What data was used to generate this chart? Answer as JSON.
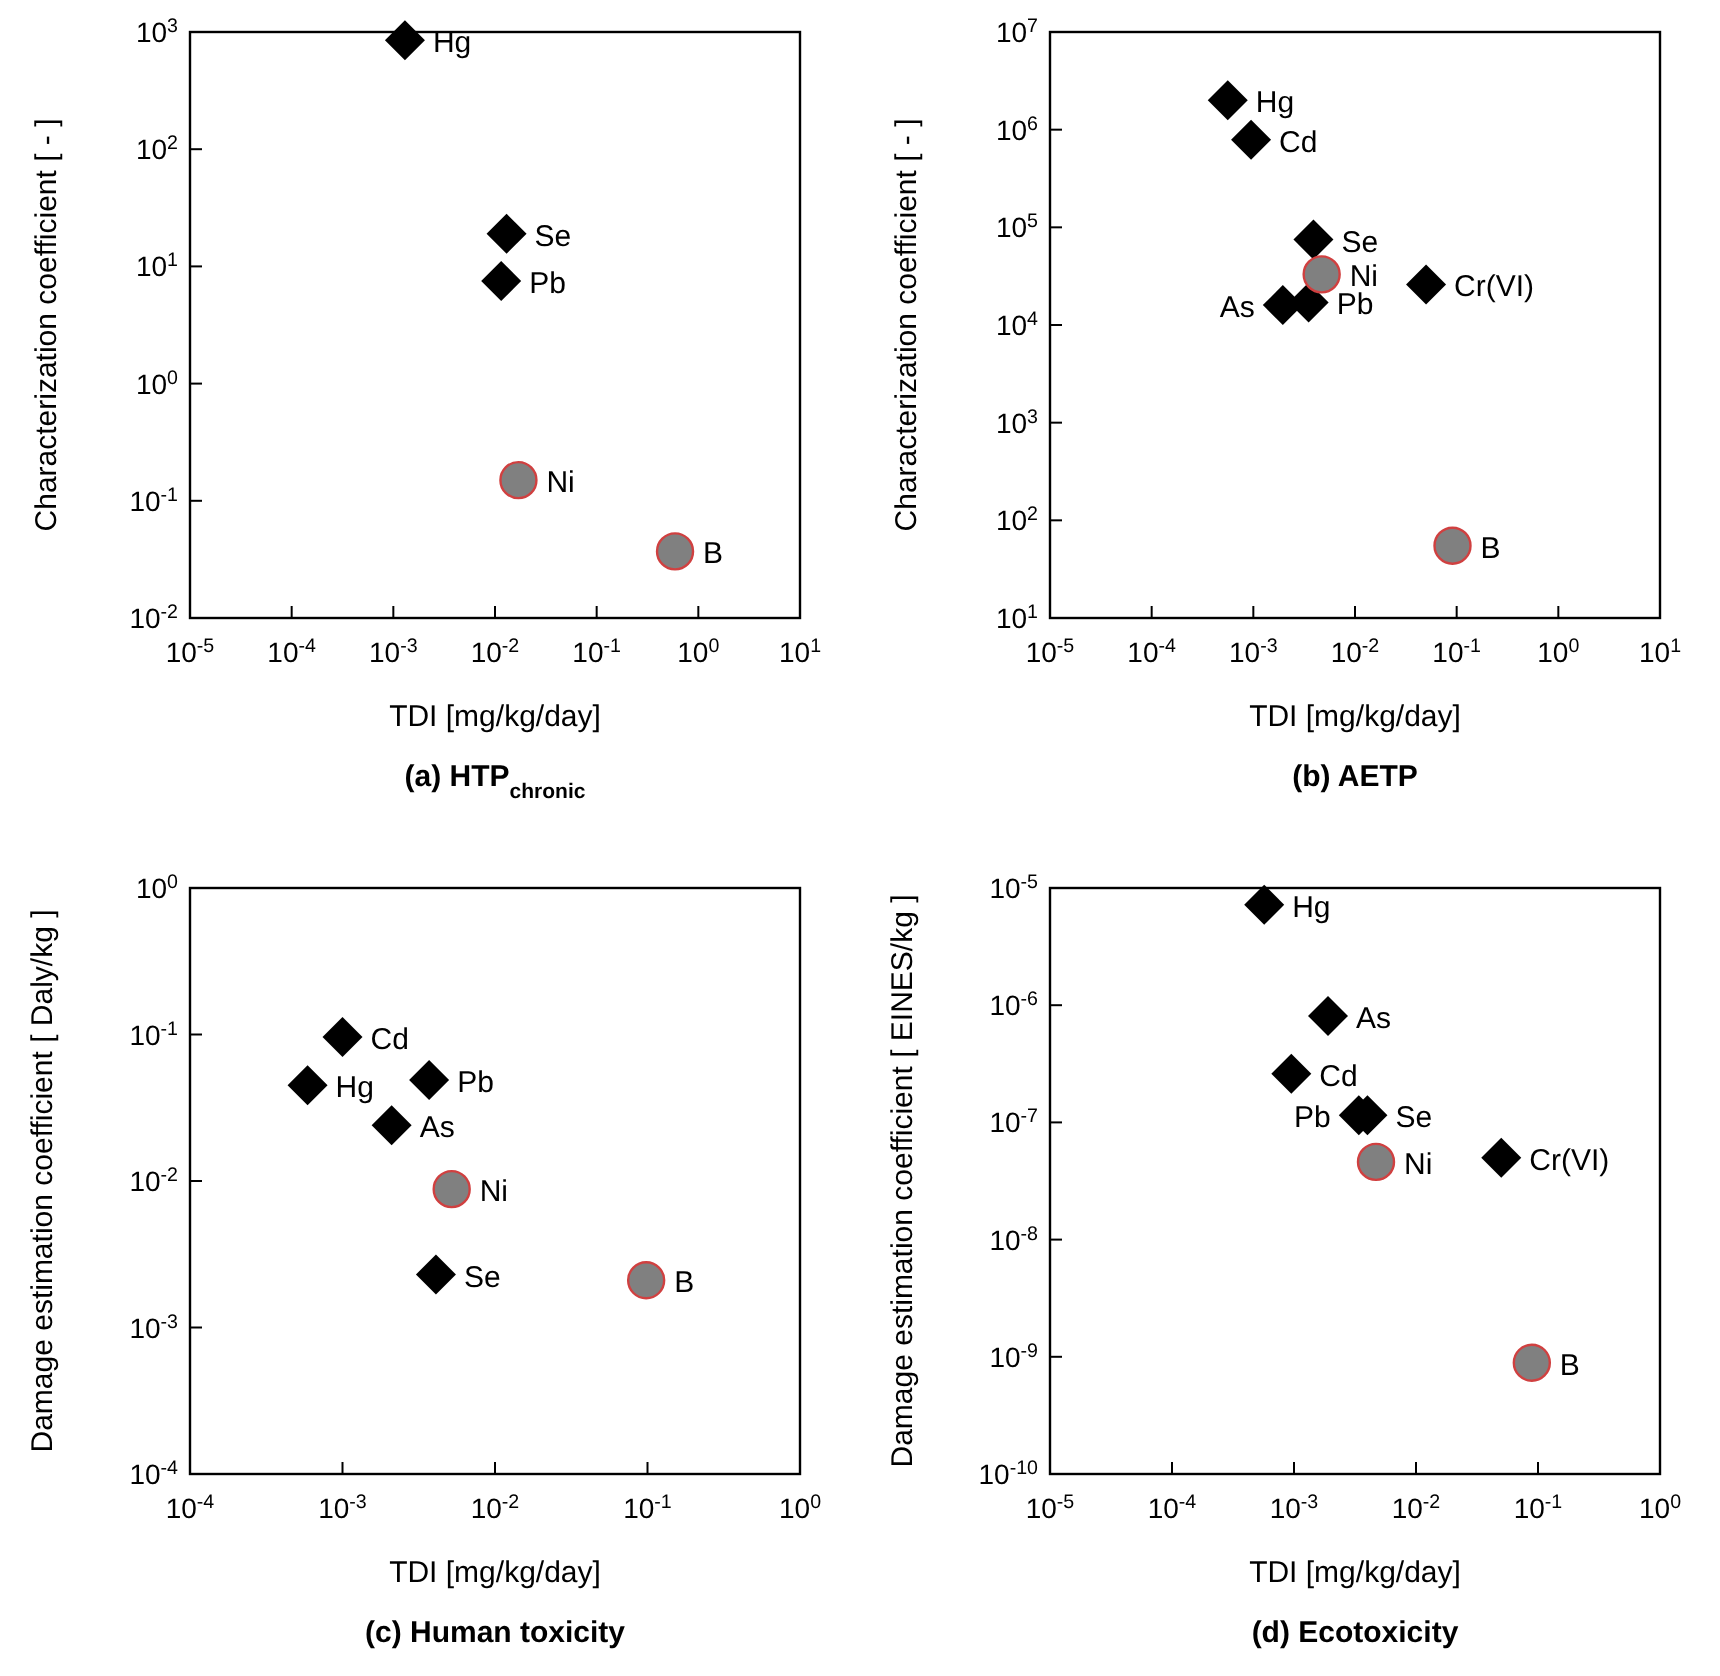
{
  "chart_data": [
    {
      "type": "scatter",
      "title": "(a) HTP$_{chronic}$",
      "xlabel": "TDI [mg/kg/day]",
      "ylabel": "Characterization coefficient [ - ]",
      "log": "xy",
      "xlim": [
        1e-05,
        10
      ],
      "xticks": [
        {
          "value": 1e-05,
          "label": "10$^{-5}$"
        },
        {
          "value": 0.0001,
          "label": "10$^{-4}$"
        },
        {
          "value": 0.001,
          "label": "10$^{-3}$"
        },
        {
          "value": 0.01,
          "label": "10$^{-2}$"
        },
        {
          "value": 0.1,
          "label": "10$^{-1}$"
        },
        {
          "value": 1,
          "label": "10$^{0}$"
        },
        {
          "value": 10,
          "label": "10$^{1}$"
        }
      ],
      "ylim": [
        0.01,
        1000
      ],
      "yticks": [
        {
          "value": 0.01,
          "label": "10$^{-2}$"
        },
        {
          "value": 0.1,
          "label": "10$^{-1}$"
        },
        {
          "value": 1,
          "label": "10$^{0}$"
        },
        {
          "value": 10,
          "label": "10$^{1}$"
        },
        {
          "value": 100,
          "label": "10$^{2}$"
        },
        {
          "value": 1000,
          "label": "10$^{3}$"
        }
      ],
      "series": [
        {
          "marker": "diamond",
          "color": "#000000",
          "x": [
            0.0013,
            0.013,
            0.0115
          ],
          "values": [
            850,
            19,
            7.5
          ]
        },
        {
          "marker": "circle",
          "color": "#808080",
          "x": [
            0.017,
            0.59
          ],
          "values": [
            0.15,
            0.037
          ]
        }
      ],
      "annotations": [
        {
          "text": "Hg",
          "x": 0.0013,
          "y": 850
        },
        {
          "text": "Se",
          "x": 0.013,
          "y": 19
        },
        {
          "text": "Pb",
          "x": 0.0115,
          "y": 7.5
        },
        {
          "text": "Ni",
          "x": 0.017,
          "y": 0.15
        },
        {
          "text": "B",
          "x": 0.59,
          "y": 0.037
        }
      ]
    },
    {
      "type": "scatter",
      "title": "(b) AETP",
      "xlabel": "TDI [mg/kg/day]",
      "ylabel": "Characterization coefficient [ - ]",
      "log": "xy",
      "xlim": [
        1e-05,
        10
      ],
      "xticks": [
        {
          "value": 1e-05,
          "label": "10$^{-5}$"
        },
        {
          "value": 0.0001,
          "label": "10$^{-4}$"
        },
        {
          "value": 0.001,
          "label": "10$^{-3}$"
        },
        {
          "value": 0.01,
          "label": "10$^{-2}$"
        },
        {
          "value": 0.1,
          "label": "10$^{-1}$"
        },
        {
          "value": 1,
          "label": "10$^{0}$"
        },
        {
          "value": 10,
          "label": "10$^{1}$"
        }
      ],
      "ylim": [
        10,
        10000000.0
      ],
      "yticks": [
        {
          "value": 10,
          "label": "10$^{1}$"
        },
        {
          "value": 100,
          "label": "10$^{2}$"
        },
        {
          "value": 1000,
          "label": "10$^{3}$"
        },
        {
          "value": 10000.0,
          "label": "10$^{4}$"
        },
        {
          "value": 100000.0,
          "label": "10$^{5}$"
        },
        {
          "value": 1000000.0,
          "label": "10$^{6}$"
        },
        {
          "value": 10000000.0,
          "label": "10$^{7}$"
        }
      ],
      "series": [
        {
          "marker": "diamond",
          "color": "#000000",
          "x": [
            0.00056,
            0.00095,
            0.0039,
            0.05,
            0.00195,
            0.0035
          ],
          "values": [
            2000000,
            790000,
            75000,
            26000,
            16000,
            17000
          ]
        },
        {
          "marker": "circle",
          "color": "#808080",
          "x": [
            0.0047,
            0.091
          ],
          "values": [
            33000,
            55
          ]
        }
      ],
      "annotations": [
        {
          "text": "Hg",
          "x": 0.00056,
          "y": 2000000
        },
        {
          "text": "Cd",
          "x": 0.00095,
          "y": 790000
        },
        {
          "text": "Se",
          "x": 0.0039,
          "y": 75000
        },
        {
          "text": "Ni",
          "x": 0.0047,
          "y": 33000
        },
        {
          "text": "Cr(VI)",
          "x": 0.05,
          "y": 26000
        },
        {
          "text": "As",
          "x": 0.00195,
          "y": 16000
        },
        {
          "text": "Pb",
          "x": 0.0035,
          "y": 17000
        },
        {
          "text": "B",
          "x": 0.091,
          "y": 55
        }
      ]
    },
    {
      "type": "scatter",
      "title": "(c) Human toxicity",
      "xlabel": "TDI [mg/kg/day]",
      "ylabel": "Damage estimation coefficient [ Daly/kg ]",
      "log": "xy",
      "xlim": [
        0.0001,
        1
      ],
      "xticks": [
        {
          "value": 0.0001,
          "label": "10$^{-4}$"
        },
        {
          "value": 0.001,
          "label": "10$^{-3}$"
        },
        {
          "value": 0.01,
          "label": "10$^{-2}$"
        },
        {
          "value": 0.1,
          "label": "10$^{-1}$"
        },
        {
          "value": 1,
          "label": "10$^{0}$"
        }
      ],
      "ylim": [
        0.0001,
        1
      ],
      "yticks": [
        {
          "value": 0.0001,
          "label": "10$^{-4}$"
        },
        {
          "value": 0.001,
          "label": "10$^{-3}$"
        },
        {
          "value": 0.01,
          "label": "10$^{-2}$"
        },
        {
          "value": 0.1,
          "label": "10$^{-1}$"
        },
        {
          "value": 1,
          "label": "10$^{0}$"
        }
      ],
      "series": [
        {
          "marker": "diamond",
          "color": "#000000",
          "x": [
            0.001,
            0.00059,
            0.0037,
            0.0021,
            0.0041
          ],
          "values": [
            0.096,
            0.045,
            0.049,
            0.024,
            0.0023
          ]
        },
        {
          "marker": "circle",
          "color": "#808080",
          "x": [
            0.0052,
            0.098
          ],
          "values": [
            0.0088,
            0.0021
          ]
        }
      ],
      "annotations": [
        {
          "text": "Cd",
          "x": 0.001,
          "y": 0.096
        },
        {
          "text": "Hg",
          "x": 0.00059,
          "y": 0.045
        },
        {
          "text": "Pb",
          "x": 0.0037,
          "y": 0.049
        },
        {
          "text": "As",
          "x": 0.0021,
          "y": 0.024
        },
        {
          "text": "Ni",
          "x": 0.0052,
          "y": 0.0088
        },
        {
          "text": "Se",
          "x": 0.0041,
          "y": 0.0023
        },
        {
          "text": "B",
          "x": 0.098,
          "y": 0.0021
        }
      ]
    },
    {
      "type": "scatter",
      "title": "(d) Ecotoxicity",
      "xlabel": "TDI [mg/kg/day]",
      "ylabel": "Damage estimation coefficient [ EINES/kg ]",
      "log": "xy",
      "xlim": [
        1e-05,
        1
      ],
      "xticks": [
        {
          "value": 1e-05,
          "label": "10$^{-5}$"
        },
        {
          "value": 0.0001,
          "label": "10$^{-4}$"
        },
        {
          "value": 0.001,
          "label": "10$^{-3}$"
        },
        {
          "value": 0.01,
          "label": "10$^{-2}$"
        },
        {
          "value": 0.1,
          "label": "10$^{-1}$"
        },
        {
          "value": 1,
          "label": "10$^{0}$"
        }
      ],
      "ylim": [
        1e-10,
        1e-05
      ],
      "yticks": [
        {
          "value": 1e-10,
          "label": "10$^{-10}$"
        },
        {
          "value": 1e-09,
          "label": "10$^{-9}$"
        },
        {
          "value": 1e-08,
          "label": "10$^{-8}$"
        },
        {
          "value": 1e-07,
          "label": "10$^{-7}$"
        },
        {
          "value": 1e-06,
          "label": "10$^{-6}$"
        },
        {
          "value": 1e-05,
          "label": "10$^{-5}$"
        }
      ],
      "series": [
        {
          "marker": "diamond",
          "color": "#000000",
          "x": [
            0.00057,
            0.0019,
            0.00095,
            0.0034,
            0.004,
            0.05
          ],
          "values": [
            7.2e-06,
            8.1e-07,
            2.6e-07,
            1.15e-07,
            1.15e-07,
            5e-08
          ]
        },
        {
          "marker": "circle",
          "color": "#808080",
          "x": [
            0.0047,
            0.089
          ],
          "values": [
            4.6e-08,
            8.9e-10
          ]
        }
      ],
      "annotations": [
        {
          "text": "Hg",
          "x": 0.00057,
          "y": 7.2e-06
        },
        {
          "text": "As",
          "x": 0.0019,
          "y": 8.1e-07
        },
        {
          "text": "Cd",
          "x": 0.00095,
          "y": 2.6e-07
        },
        {
          "text": "Pb",
          "x": 0.0034,
          "y": 1.15e-07
        },
        {
          "text": "Se",
          "x": 0.004,
          "y": 1.15e-07
        },
        {
          "text": "Ni",
          "x": 0.0047,
          "y": 4.6e-08
        },
        {
          "text": "Cr(VI)",
          "x": 0.05,
          "y": 5e-08
        },
        {
          "text": "B",
          "x": 0.089,
          "y": 8.9e-10
        }
      ]
    }
  ]
}
